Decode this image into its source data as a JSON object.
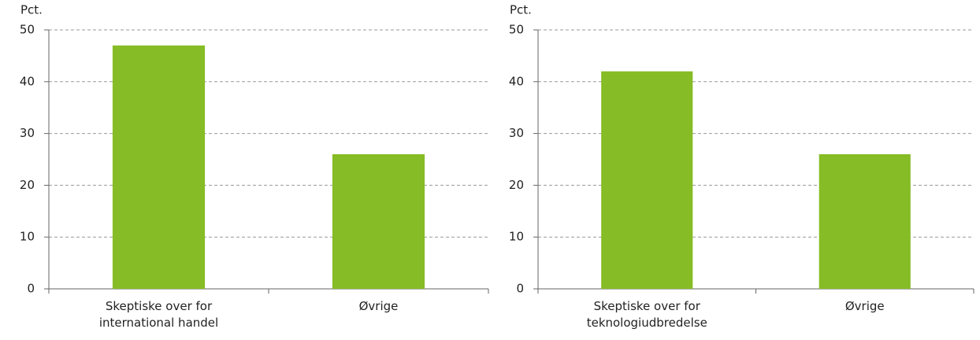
{
  "chart_data": [
    {
      "type": "bar",
      "ylabel": "Pct.",
      "categories": [
        "Skeptiske over for international handel",
        "Øvrige"
      ],
      "values": [
        47,
        26
      ],
      "color": "#86bc25",
      "ylim": [
        0,
        50
      ],
      "yticks": [
        0,
        10,
        20,
        30,
        40,
        50
      ],
      "grid": true
    },
    {
      "type": "bar",
      "ylabel": "Pct.",
      "categories": [
        "Skeptiske over for teknologiudbredelse",
        "Øvrige"
      ],
      "values": [
        42,
        26
      ],
      "color": "#86bc25",
      "ylim": [
        0,
        50
      ],
      "yticks": [
        0,
        10,
        20,
        30,
        40,
        50
      ],
      "grid": true
    }
  ]
}
